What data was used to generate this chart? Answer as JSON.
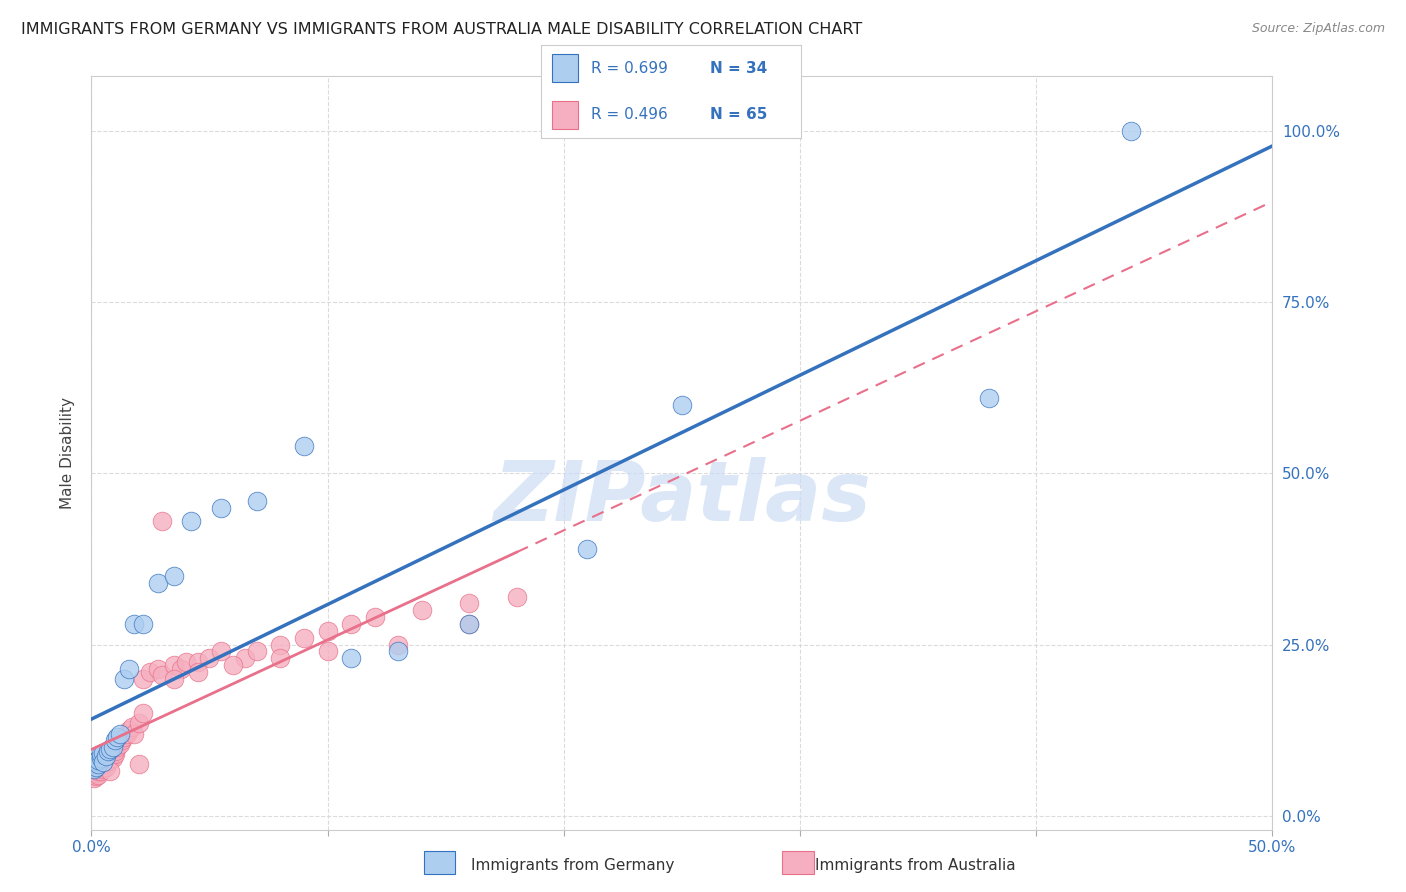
{
  "title": "IMMIGRANTS FROM GERMANY VS IMMIGRANTS FROM AUSTRALIA MALE DISABILITY CORRELATION CHART",
  "source": "Source: ZipAtlas.com",
  "ylabel": "Male Disability",
  "legend_label1": "Immigrants from Germany",
  "legend_label2": "Immigrants from Australia",
  "R1": 0.699,
  "N1": 34,
  "R2": 0.496,
  "N2": 65,
  "color_germany": "#aecef0",
  "color_australia": "#f5afc0",
  "line_color_germany": "#3572be",
  "line_color_australia": "#e8708a",
  "background_color": "#ffffff",
  "grid_color": "#d8d8d8",
  "xlim": [
    0.0,
    0.5
  ],
  "ylim": [
    -0.02,
    1.08
  ],
  "xticks": [
    0.0,
    0.1,
    0.2,
    0.3,
    0.4,
    0.5
  ],
  "yticks": [
    0.0,
    0.25,
    0.5,
    0.75,
    1.0
  ],
  "germany_x": [
    0.001,
    0.001,
    0.002,
    0.002,
    0.003,
    0.003,
    0.004,
    0.004,
    0.005,
    0.005,
    0.006,
    0.007,
    0.008,
    0.009,
    0.01,
    0.011,
    0.012,
    0.014,
    0.016,
    0.018,
    0.022,
    0.028,
    0.035,
    0.042,
    0.055,
    0.07,
    0.09,
    0.11,
    0.13,
    0.16,
    0.21,
    0.25,
    0.38,
    0.44
  ],
  "germany_y": [
    0.068,
    0.075,
    0.072,
    0.08,
    0.076,
    0.082,
    0.085,
    0.09,
    0.092,
    0.078,
    0.088,
    0.095,
    0.098,
    0.1,
    0.11,
    0.115,
    0.12,
    0.2,
    0.215,
    0.28,
    0.28,
    0.34,
    0.35,
    0.43,
    0.45,
    0.46,
    0.54,
    0.23,
    0.24,
    0.28,
    0.39,
    0.6,
    0.61,
    1.0
  ],
  "australia_x": [
    0.001,
    0.001,
    0.001,
    0.002,
    0.002,
    0.002,
    0.003,
    0.003,
    0.003,
    0.004,
    0.004,
    0.004,
    0.005,
    0.005,
    0.005,
    0.006,
    0.006,
    0.007,
    0.007,
    0.008,
    0.008,
    0.009,
    0.009,
    0.01,
    0.01,
    0.011,
    0.012,
    0.013,
    0.014,
    0.015,
    0.016,
    0.017,
    0.018,
    0.02,
    0.022,
    0.022,
    0.025,
    0.028,
    0.03,
    0.035,
    0.038,
    0.04,
    0.045,
    0.05,
    0.055,
    0.065,
    0.07,
    0.08,
    0.09,
    0.1,
    0.11,
    0.12,
    0.14,
    0.16,
    0.18,
    0.03,
    0.035,
    0.045,
    0.06,
    0.08,
    0.1,
    0.13,
    0.16,
    0.02,
    0.008
  ],
  "australia_y": [
    0.055,
    0.06,
    0.065,
    0.058,
    0.062,
    0.068,
    0.06,
    0.065,
    0.072,
    0.065,
    0.07,
    0.075,
    0.068,
    0.075,
    0.08,
    0.072,
    0.078,
    0.08,
    0.085,
    0.082,
    0.088,
    0.085,
    0.092,
    0.09,
    0.095,
    0.1,
    0.105,
    0.11,
    0.115,
    0.12,
    0.125,
    0.13,
    0.12,
    0.135,
    0.15,
    0.2,
    0.21,
    0.215,
    0.205,
    0.22,
    0.215,
    0.225,
    0.225,
    0.23,
    0.24,
    0.23,
    0.24,
    0.25,
    0.26,
    0.27,
    0.28,
    0.29,
    0.3,
    0.31,
    0.32,
    0.43,
    0.2,
    0.21,
    0.22,
    0.23,
    0.24,
    0.25,
    0.28,
    0.075,
    0.065
  ],
  "watermark_text": "ZIPatlas",
  "watermark_color": "#ccddf5",
  "title_fontsize": 11.5,
  "tick_fontsize": 11,
  "label_fontsize": 11
}
